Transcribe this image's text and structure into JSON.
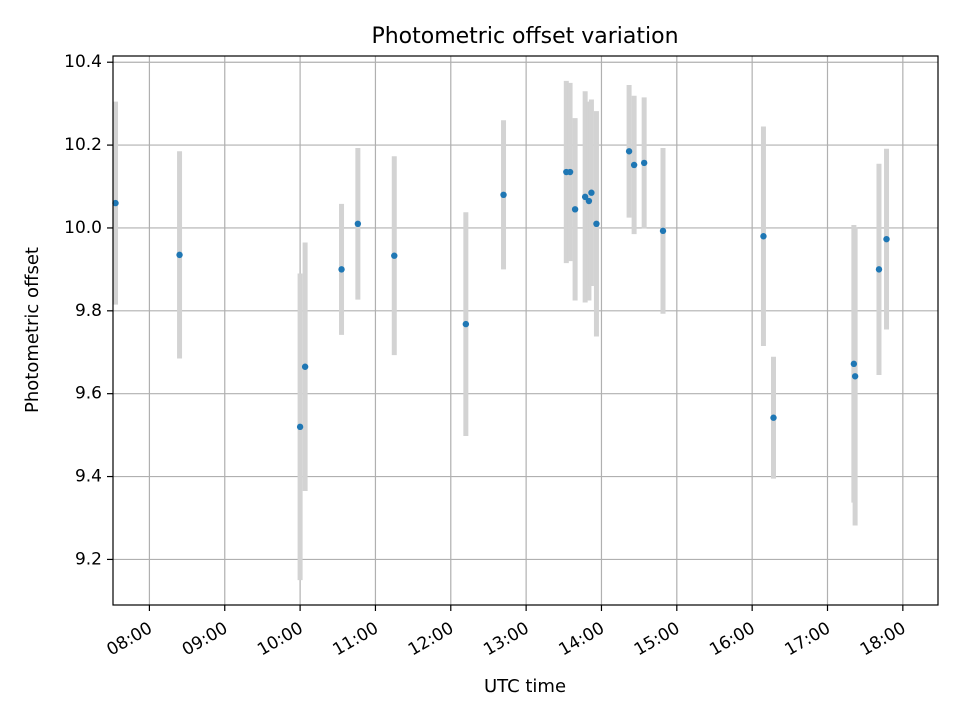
{
  "chart_data": {
    "type": "scatter",
    "title": "Photometric offset variation",
    "xlabel": "UTC time",
    "ylabel": "Photometric offset",
    "grid": true,
    "xlim": [
      "07:31",
      "18:28"
    ],
    "ylim": [
      9.09,
      10.415
    ],
    "x_ticks": [
      "08:00",
      "09:00",
      "10:00",
      "11:00",
      "12:00",
      "13:00",
      "14:00",
      "15:00",
      "16:00",
      "17:00",
      "18:00"
    ],
    "y_ticks": [
      9.2,
      9.4,
      9.6,
      9.8,
      10.0,
      10.2,
      10.4
    ],
    "colors": {
      "point": "#1f77b4",
      "errorbar": "#d3d3d3"
    },
    "points": [
      {
        "time": "07:33",
        "y": 10.06,
        "err": 0.245
      },
      {
        "time": "08:24",
        "y": 9.935,
        "err": 0.25
      },
      {
        "time": "10:00",
        "y": 9.52,
        "err": 0.37
      },
      {
        "time": "10:04",
        "y": 9.665,
        "err": 0.3
      },
      {
        "time": "10:33",
        "y": 9.9,
        "err": 0.158
      },
      {
        "time": "10:46",
        "y": 10.01,
        "err": 0.183
      },
      {
        "time": "11:15",
        "y": 9.933,
        "err": 0.24
      },
      {
        "time": "12:12",
        "y": 9.768,
        "err": 0.27
      },
      {
        "time": "12:42",
        "y": 10.08,
        "err": 0.18
      },
      {
        "time": "13:32",
        "y": 10.135,
        "err": 0.22
      },
      {
        "time": "13:35",
        "y": 10.135,
        "err": 0.215
      },
      {
        "time": "13:39",
        "y": 10.045,
        "err": 0.22
      },
      {
        "time": "13:47",
        "y": 10.075,
        "err": 0.255
      },
      {
        "time": "13:50",
        "y": 10.065,
        "err": 0.24
      },
      {
        "time": "13:52",
        "y": 10.085,
        "err": 0.225
      },
      {
        "time": "13:56",
        "y": 10.01,
        "err": 0.272
      },
      {
        "time": "14:22",
        "y": 10.185,
        "err": 0.16
      },
      {
        "time": "14:26",
        "y": 10.152,
        "err": 0.167
      },
      {
        "time": "14:34",
        "y": 10.157,
        "err": 0.158
      },
      {
        "time": "14:49",
        "y": 9.993,
        "err": 0.2
      },
      {
        "time": "16:09",
        "y": 9.98,
        "err": 0.265
      },
      {
        "time": "16:17",
        "y": 9.542,
        "err": 0.147
      },
      {
        "time": "17:21",
        "y": 9.672,
        "err": 0.335
      },
      {
        "time": "17:22",
        "y": 9.642,
        "err": 0.36
      },
      {
        "time": "17:41",
        "y": 9.9,
        "err": 0.255
      },
      {
        "time": "17:47",
        "y": 9.973,
        "err": 0.218
      }
    ]
  }
}
